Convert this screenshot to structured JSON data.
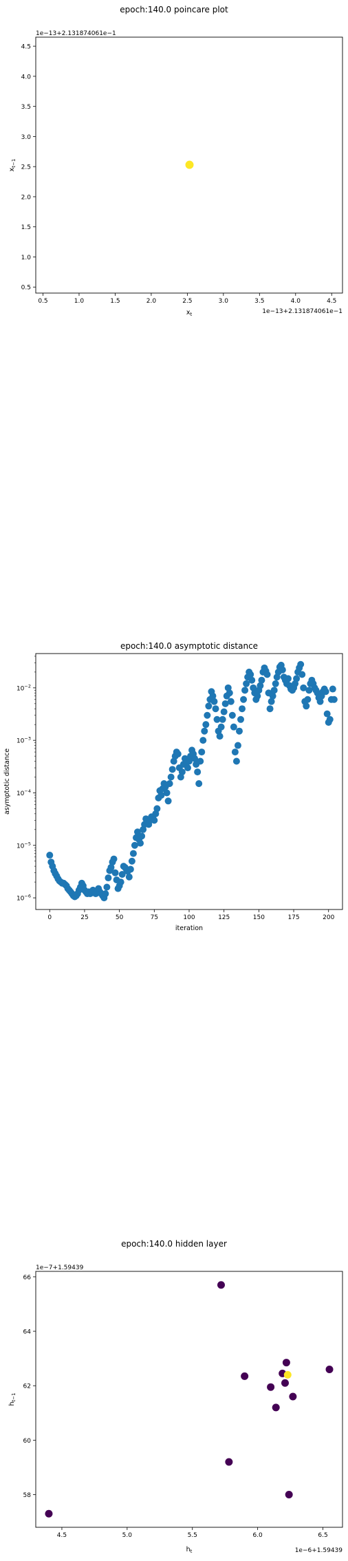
{
  "chart_data": [
    {
      "type": "scatter",
      "title": "epoch:140.0 poincare plot",
      "xlabel": "x_t",
      "ylabel": "x_{t-1}",
      "x_offset_text": "1e−13+2.131874061e−1",
      "y_offset_text": "1e−13+2.131874061e−1",
      "xlim": [
        0.4,
        4.65
      ],
      "ylim": [
        0.4,
        4.65
      ],
      "xticks": [
        0.5,
        1.0,
        1.5,
        2.0,
        2.5,
        3.0,
        3.5,
        4.0,
        4.5
      ],
      "yticks": [
        0.5,
        1.0,
        1.5,
        2.0,
        2.5,
        3.0,
        3.5,
        4.0,
        4.5
      ],
      "xtick_labels": [
        "0.5",
        "1.0",
        "1.5",
        "2.0",
        "2.5",
        "3.0",
        "3.5",
        "4.0",
        "4.5"
      ],
      "ytick_labels": [
        "0.5",
        "1.0",
        "1.5",
        "2.0",
        "2.5",
        "3.0",
        "3.5",
        "4.0",
        "4.5"
      ],
      "points": [
        {
          "x": 2.53,
          "y": 2.53
        }
      ],
      "point_color": "#fde725"
    },
    {
      "type": "scatter",
      "title": "epoch:140.0 asymptotic distance",
      "xlabel": "iteration",
      "ylabel": "asymptotic distance",
      "yscale": "log",
      "xlim": [
        -10,
        210
      ],
      "ylim": [
        6e-07,
        0.045
      ],
      "xticks": [
        0,
        25,
        50,
        75,
        100,
        125,
        150,
        175,
        200
      ],
      "xtick_labels": [
        "0",
        "25",
        "50",
        "75",
        "100",
        "125",
        "150",
        "175",
        "200"
      ],
      "yticks": [
        1e-06,
        1e-05,
        0.0001,
        0.001,
        0.01
      ],
      "ytick_labels": [
        {
          "base": "10",
          "exp": "−6"
        },
        {
          "base": "10",
          "exp": "−5"
        },
        {
          "base": "10",
          "exp": "−4"
        },
        {
          "base": "10",
          "exp": "−3"
        },
        {
          "base": "10",
          "exp": "−2"
        }
      ],
      "point_color": "#1f77b4",
      "y": [
        6.5e-06,
        4.8e-06,
        4e-06,
        3.3e-06,
        2.9e-06,
        2.6e-06,
        2.3e-06,
        2.1e-06,
        2e-06,
        1.9e-06,
        1.9e-06,
        1.8e-06,
        1.7e-06,
        1.5e-06,
        1.4e-06,
        1.3e-06,
        1.2e-06,
        1.1e-06,
        1.05e-06,
        1.1e-06,
        1.2e-06,
        1.4e-06,
        1.6e-06,
        1.9e-06,
        1.7e-06,
        1.4e-06,
        1.3e-06,
        1.2e-06,
        1.3e-06,
        1.2e-06,
        1.25e-06,
        1.4e-06,
        1.3e-06,
        1.2e-06,
        1.3e-06,
        1.5e-06,
        1.3e-06,
        1.2e-06,
        1.1e-06,
        1e-06,
        1.2e-06,
        1.6e-06,
        2.4e-06,
        3.3e-06,
        3.8e-06,
        4.8e-06,
        5.5e-06,
        3e-06,
        2.2e-06,
        1.5e-06,
        1.7e-06,
        2e-06,
        2.8e-06,
        4e-06,
        3.8e-06,
        3.5e-06,
        3.2e-06,
        2.5e-06,
        3.5e-06,
        5e-06,
        7e-06,
        1e-05,
        1.4e-05,
        1.8e-05,
        1.3e-05,
        1.1e-05,
        1.5e-05,
        2e-05,
        2.5e-05,
        3.2e-05,
        2.8e-05,
        2.5e-05,
        3e-05,
        3.5e-05,
        3.3e-05,
        3e-05,
        4e-05,
        5e-05,
        8e-05,
        0.00011,
        9e-05,
        0.00012,
        0.00015,
        0.00013,
        0.0001,
        7e-05,
        0.00015,
        0.0002,
        0.00028,
        0.0004,
        0.0005,
        0.0006,
        0.00055,
        0.0003,
        0.0002,
        0.00025,
        0.00035,
        0.00045,
        0.00038,
        0.0003,
        0.0004,
        0.0005,
        0.00065,
        0.00055,
        0.00045,
        0.00035,
        0.00025,
        0.00015,
        0.0004,
        0.0006,
        0.001,
        0.0015,
        0.002,
        0.003,
        0.0045,
        0.006,
        0.0085,
        0.007,
        0.0055,
        0.004,
        0.0025,
        0.0015,
        0.0012,
        0.0018,
        0.0025,
        0.0035,
        0.005,
        0.007,
        0.01,
        0.008,
        0.0055,
        0.003,
        0.0018,
        0.0006,
        0.0004,
        0.0008,
        0.0015,
        0.0025,
        0.004,
        0.006,
        0.009,
        0.012,
        0.016,
        0.02,
        0.018,
        0.014,
        0.01,
        0.008,
        0.006,
        0.007,
        0.009,
        0.011,
        0.014,
        0.02,
        0.024,
        0.021,
        0.018,
        0.008,
        0.004,
        0.0055,
        0.007,
        0.009,
        0.012,
        0.016,
        0.02,
        0.025,
        0.027,
        0.022,
        0.016,
        0.014,
        0.012,
        0.015,
        0.011,
        0.0095,
        0.009,
        0.01,
        0.012,
        0.015,
        0.02,
        0.024,
        0.028,
        0.018,
        0.01,
        0.0055,
        0.0045,
        0.006,
        0.009,
        0.012,
        0.014,
        0.012,
        0.01,
        0.009,
        0.008,
        0.0065,
        0.0055,
        0.007,
        0.0085,
        0.0095,
        0.0085,
        0.0032,
        0.0022,
        0.0025,
        0.006,
        0.0095,
        0.006
      ]
    },
    {
      "type": "scatter",
      "title": "epoch:140.0 hidden layer",
      "xlabel": "h_t",
      "ylabel": "h_{t-1}",
      "x_offset_text": "1e−6+1.59439",
      "y_offset_text": "1e−7+1.59439",
      "xlim": [
        4.3,
        6.65
      ],
      "ylim": [
        56.8,
        66.2
      ],
      "xticks": [
        4.5,
        5.0,
        5.5,
        6.0,
        6.5
      ],
      "xtick_labels": [
        "4.5",
        "5.0",
        "5.5",
        "6.0",
        "6.5"
      ],
      "yticks": [
        58,
        60,
        62,
        64,
        66
      ],
      "ytick_labels": [
        "58",
        "60",
        "62",
        "64",
        "66"
      ],
      "dark_color": "#440154",
      "highlight_color": "#fde725",
      "points": [
        {
          "x": 4.4,
          "y": 57.3,
          "c": "dark"
        },
        {
          "x": 5.72,
          "y": 65.7,
          "c": "dark"
        },
        {
          "x": 5.78,
          "y": 59.2,
          "c": "dark"
        },
        {
          "x": 5.9,
          "y": 62.35,
          "c": "dark"
        },
        {
          "x": 6.1,
          "y": 61.95,
          "c": "dark"
        },
        {
          "x": 6.14,
          "y": 61.2,
          "c": "dark"
        },
        {
          "x": 6.19,
          "y": 62.45,
          "c": "dark"
        },
        {
          "x": 6.21,
          "y": 62.1,
          "c": "dark"
        },
        {
          "x": 6.22,
          "y": 62.85,
          "c": "dark"
        },
        {
          "x": 6.24,
          "y": 58.0,
          "c": "dark"
        },
        {
          "x": 6.27,
          "y": 61.6,
          "c": "dark"
        },
        {
          "x": 6.55,
          "y": 62.6,
          "c": "dark"
        },
        {
          "x": 6.23,
          "y": 62.4,
          "c": "highlight"
        }
      ]
    }
  ]
}
